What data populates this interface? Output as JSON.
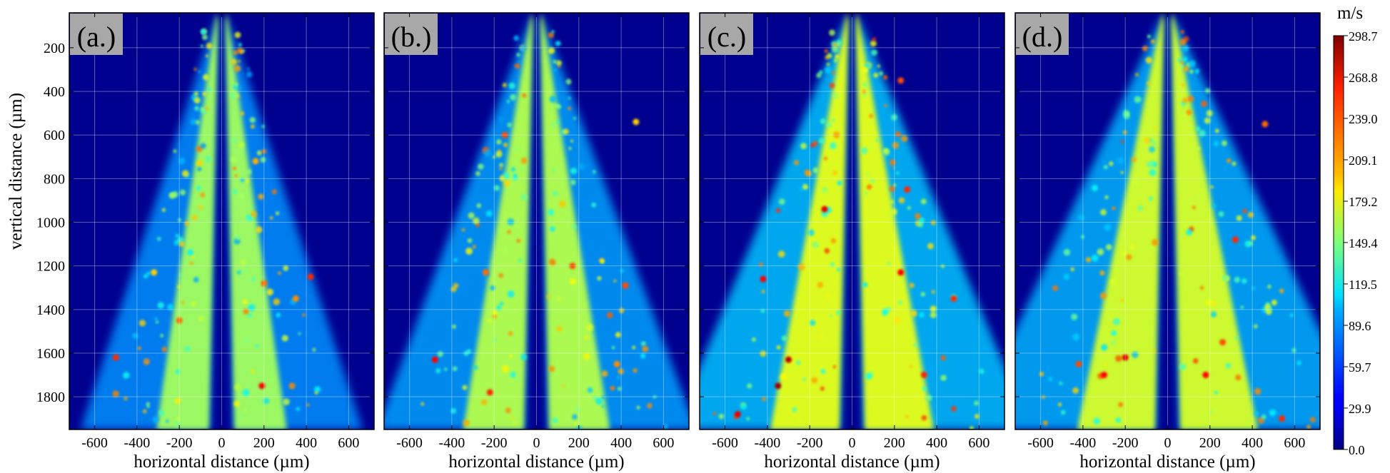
{
  "chart_data": {
    "type": "heatmap",
    "description_panels": [
      "(a.)",
      "(b.)",
      "(c.)",
      "(d.)"
    ],
    "xlabel": "horizontal distance (µm)",
    "ylabel": "vertical distance (µm)",
    "xlim": [
      -720,
      720
    ],
    "ylim": [
      1950,
      40
    ],
    "x_ticks": [
      -600,
      -400,
      -200,
      0,
      200,
      400,
      600
    ],
    "y_ticks": [
      200,
      400,
      600,
      800,
      1000,
      1200,
      1400,
      1600,
      1800
    ],
    "colorbar": {
      "unit": "m/s",
      "min": 0.0,
      "max": 298.7,
      "tick_labels": [
        "298.7",
        "268.8",
        "239.0",
        "209.1",
        "179.2",
        "149.4",
        "119.5",
        "89.6",
        "59.7",
        "29.9",
        "0.0"
      ],
      "tick_values": [
        298.7,
        268.8,
        239.0,
        209.1,
        179.2,
        149.4,
        119.5,
        89.6,
        59.7,
        29.9,
        0.0
      ]
    },
    "panels": [
      {
        "label": "(a.)",
        "jet_half_angle_deg": 13,
        "core_speed": 160,
        "background_speed": 40,
        "hot_spots": [
          {
            "x": -500,
            "y": 1620,
            "v": 250
          },
          {
            "x": -200,
            "y": 1450,
            "v": 230
          },
          {
            "x": 190,
            "y": 1750,
            "v": 260
          },
          {
            "x": 420,
            "y": 1250,
            "v": 250
          },
          {
            "x": 200,
            "y": 1280,
            "v": 230
          },
          {
            "x": 160,
            "y": 720,
            "v": 210
          },
          {
            "x": -320,
            "y": 1230,
            "v": 200
          },
          {
            "x": 350,
            "y": 1350,
            "v": 220
          }
        ]
      },
      {
        "label": "(b.)",
        "jet_half_angle_deg": 15,
        "core_speed": 165,
        "background_speed": 45,
        "hot_spots": [
          {
            "x": -480,
            "y": 1630,
            "v": 260
          },
          {
            "x": -220,
            "y": 1780,
            "v": 250
          },
          {
            "x": -150,
            "y": 600,
            "v": 240
          },
          {
            "x": 470,
            "y": 540,
            "v": 200
          },
          {
            "x": -240,
            "y": 1230,
            "v": 230
          },
          {
            "x": 170,
            "y": 1200,
            "v": 240
          },
          {
            "x": 420,
            "y": 1290,
            "v": 240
          },
          {
            "x": 380,
            "y": 1650,
            "v": 220
          }
        ]
      },
      {
        "label": "(c.)",
        "jet_half_angle_deg": 17,
        "core_speed": 180,
        "background_speed": 55,
        "hot_spots": [
          {
            "x": -300,
            "y": 1630,
            "v": 280
          },
          {
            "x": -350,
            "y": 1750,
            "v": 290
          },
          {
            "x": -130,
            "y": 940,
            "v": 270
          },
          {
            "x": 260,
            "y": 850,
            "v": 250
          },
          {
            "x": 230,
            "y": 1230,
            "v": 260
          },
          {
            "x": -420,
            "y": 1260,
            "v": 260
          },
          {
            "x": 480,
            "y": 1350,
            "v": 250
          },
          {
            "x": 340,
            "y": 1700,
            "v": 250
          },
          {
            "x": 230,
            "y": 350,
            "v": 240
          },
          {
            "x": -540,
            "y": 1880,
            "v": 270
          }
        ]
      },
      {
        "label": "(d.)",
        "jet_half_angle_deg": 19,
        "core_speed": 175,
        "background_speed": 50,
        "hot_spots": [
          {
            "x": -200,
            "y": 1620,
            "v": 270
          },
          {
            "x": -300,
            "y": 1700,
            "v": 260
          },
          {
            "x": 180,
            "y": 1700,
            "v": 260
          },
          {
            "x": 320,
            "y": 1080,
            "v": 250
          },
          {
            "x": 460,
            "y": 550,
            "v": 230
          },
          {
            "x": -420,
            "y": 1650,
            "v": 240
          },
          {
            "x": 260,
            "y": 1550,
            "v": 240
          },
          {
            "x": 540,
            "y": 1900,
            "v": 250
          }
        ]
      }
    ]
  }
}
